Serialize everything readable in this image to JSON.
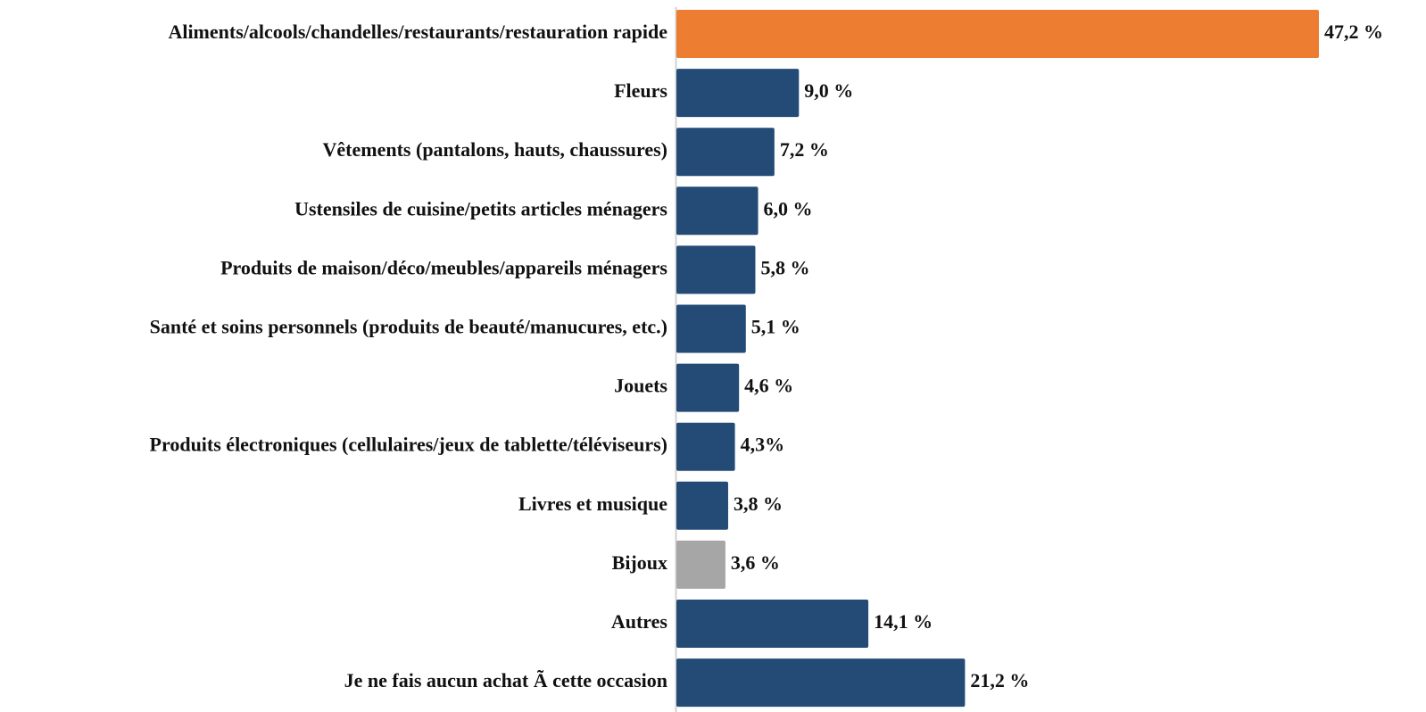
{
  "chart_data": {
    "type": "barh",
    "categories": [
      "Aliments/alcools/chandelles/restaurants/restauration rapide",
      "Fleurs",
      "Vêtements (pantalons, hauts, chaussures)",
      "Ustensiles de cuisine/petits articles ménagers",
      "Produits de maison/déco/meubles/appareils ménagers",
      "Santé et soins personnels (produits de beauté/manucures, etc.)",
      "Jouets",
      "Produits électroniques (cellulaires/jeux de tablette/téléviseurs)",
      "Livres et musique",
      "Bijoux",
      "Autres",
      "Je ne fais aucun achat Ã  cette occasion"
    ],
    "values": [
      47.2,
      9.0,
      7.2,
      6.0,
      5.8,
      5.1,
      4.6,
      4.3,
      3.8,
      3.6,
      14.1,
      21.2
    ],
    "value_labels": [
      "47,2 %",
      "9,0 %",
      "7,2 %",
      "6,0 %",
      "5,8 %",
      "5,1 %",
      "4,6 %",
      "4,3%",
      "3,8 %",
      "3,6 %",
      "14,1 %",
      "21,2 %"
    ],
    "colors": [
      "#ed7d31",
      "#234b76",
      "#234b76",
      "#234b76",
      "#234b76",
      "#234b76",
      "#234b76",
      "#234b76",
      "#234b76",
      "#a6a6a6",
      "#234b76",
      "#234b76"
    ]
  }
}
